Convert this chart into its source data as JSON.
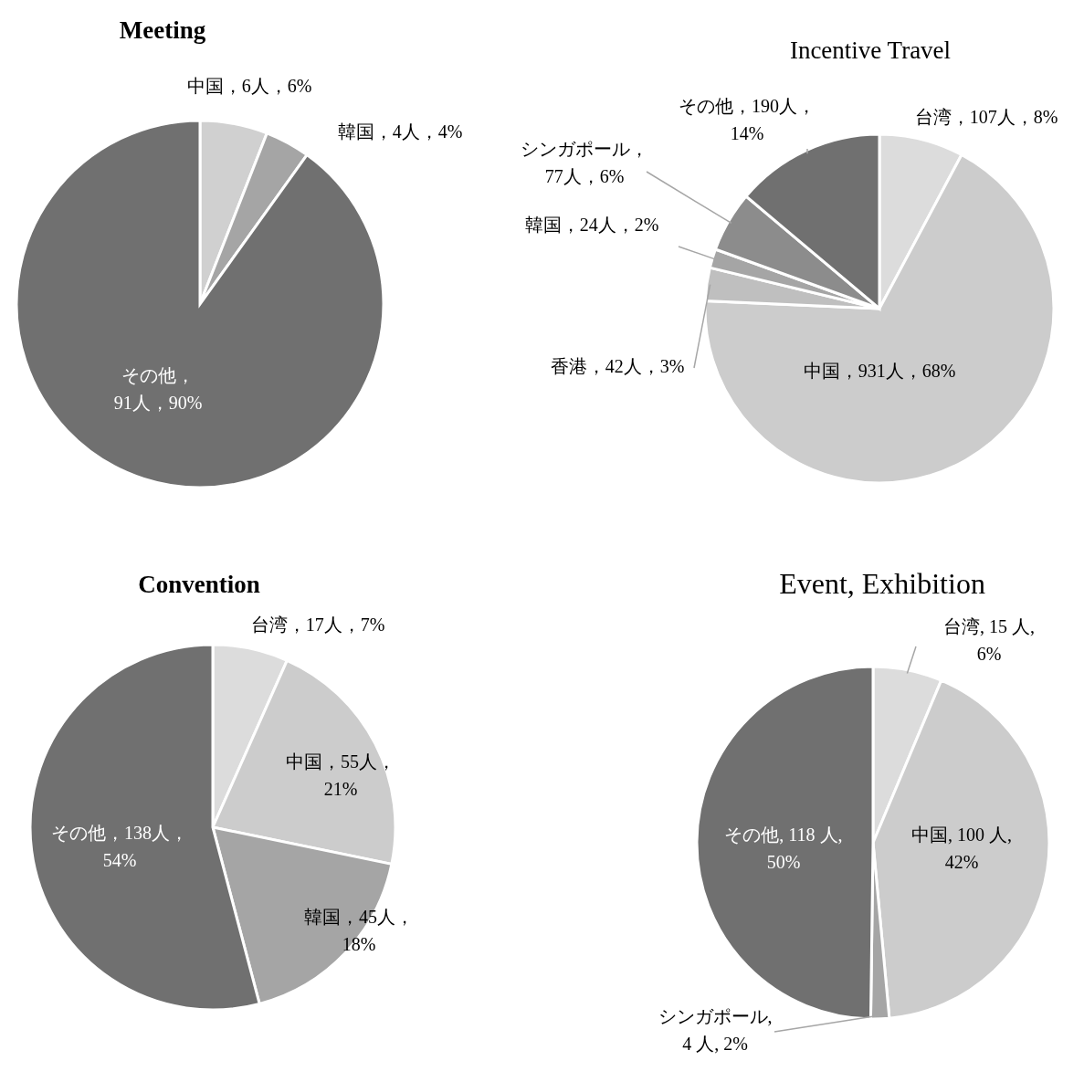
{
  "chart_data": [
    {
      "type": "pie",
      "title": "Meeting",
      "categories": [
        "中国",
        "韓国",
        "その他"
      ],
      "values": [
        6,
        4,
        91
      ],
      "colors": [
        "#d0d0d0",
        "#a5a5a5",
        "#707070"
      ],
      "value_labels": [
        "，6人，6%",
        "，4人，4%",
        "，\n91人，90%"
      ]
    },
    {
      "type": "pie",
      "title": "Incentive Travel",
      "categories": [
        "台湾",
        "中国",
        "香港",
        "韓国",
        "シンガポール",
        "その他"
      ],
      "values": [
        107,
        931,
        42,
        24,
        77,
        190
      ],
      "colors": [
        "#dcdcdc",
        "#cccccc",
        "#bfbfbf",
        "#a5a5a5",
        "#8c8c8c",
        "#707070"
      ],
      "value_labels": [
        "，107人，8%",
        "，931人，68%",
        "，42人，3%",
        "，24人，2%",
        "，\n77人，6%",
        "，190人，\n14%"
      ]
    },
    {
      "type": "pie",
      "title": "Convention",
      "categories": [
        "台湾",
        "中国",
        "韓国",
        "その他"
      ],
      "values": [
        17,
        55,
        45,
        138
      ],
      "colors": [
        "#dcdcdc",
        "#cccccc",
        "#a5a5a5",
        "#707070"
      ],
      "value_labels": [
        "，17人，7%",
        "，55人，\n21%",
        "，45人，\n18%",
        "，138人，\n54%"
      ]
    },
    {
      "type": "pie",
      "title": "Event, Exhibition",
      "categories": [
        "台湾",
        "中国",
        "シンガポール",
        "その他"
      ],
      "values": [
        15,
        100,
        4,
        118
      ],
      "colors": [
        "#dcdcdc",
        "#cccccc",
        "#a5a5a5",
        "#707070"
      ],
      "value_labels": [
        ", 15 人,\n6%",
        ", 100 人,\n42%",
        ",\n4 人, 2%",
        ", 118 人,\n50%"
      ]
    }
  ]
}
